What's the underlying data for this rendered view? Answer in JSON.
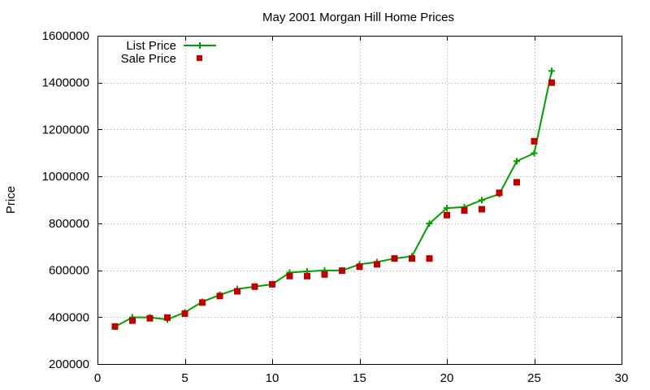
{
  "chart_data": {
    "type": "line",
    "title": "May 2001 Morgan Hill Home Prices",
    "xlabel": "",
    "ylabel": "Price",
    "xlim": [
      0,
      30
    ],
    "ylim": [
      200000,
      1600000
    ],
    "x_ticks": [
      0,
      5,
      10,
      15,
      20,
      25,
      30
    ],
    "y_ticks": [
      200000,
      400000,
      600000,
      800000,
      1000000,
      1200000,
      1400000,
      1600000
    ],
    "grid": true,
    "legend_position": "top-left",
    "series": [
      {
        "name": "List Price",
        "style": "line+cross",
        "color": "#00a000",
        "x": [
          1,
          2,
          3,
          4,
          5,
          6,
          7,
          8,
          9,
          10,
          11,
          12,
          13,
          14,
          15,
          16,
          17,
          18,
          19,
          20,
          21,
          22,
          23,
          24,
          25,
          26
        ],
        "values": [
          359000,
          399000,
          399000,
          390000,
          420000,
          465000,
          495000,
          520000,
          530000,
          540000,
          590000,
          595000,
          599000,
          599000,
          625000,
          635000,
          650000,
          659000,
          799000,
          865000,
          869000,
          899000,
          925000,
          1065000,
          1099000,
          1450000
        ]
      },
      {
        "name": "Sale Price",
        "style": "square",
        "color": "#c00000",
        "x": [
          1,
          2,
          3,
          4,
          5,
          6,
          7,
          8,
          9,
          10,
          11,
          12,
          13,
          14,
          15,
          16,
          17,
          18,
          19,
          20,
          21,
          22,
          23,
          24,
          25,
          26
        ],
        "values": [
          360000,
          385000,
          395000,
          398000,
          415000,
          462000,
          490000,
          510000,
          530000,
          540000,
          575000,
          575000,
          582000,
          598000,
          615000,
          625000,
          650000,
          650000,
          650000,
          835000,
          855000,
          860000,
          930000,
          975000,
          1150000,
          1400000
        ]
      }
    ]
  }
}
